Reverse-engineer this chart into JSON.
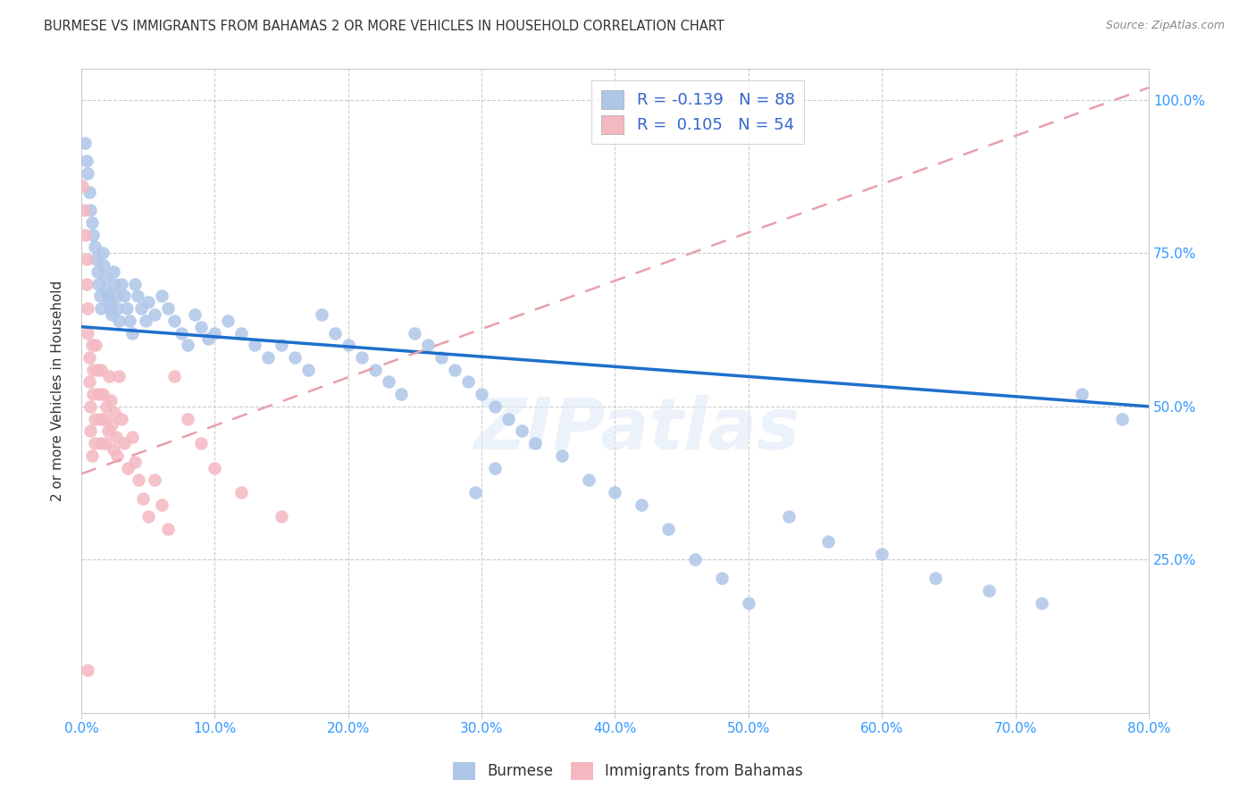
{
  "title": "BURMESE VS IMMIGRANTS FROM BAHAMAS 2 OR MORE VEHICLES IN HOUSEHOLD CORRELATION CHART",
  "source": "Source: ZipAtlas.com",
  "ylabel": "2 or more Vehicles in Household",
  "xmin": 0.0,
  "xmax": 0.8,
  "ymin": 0.0,
  "ymax": 1.05,
  "xtick_labels": [
    "0.0%",
    "10.0%",
    "20.0%",
    "30.0%",
    "40.0%",
    "50.0%",
    "60.0%",
    "70.0%",
    "80.0%"
  ],
  "xtick_values": [
    0.0,
    0.1,
    0.2,
    0.3,
    0.4,
    0.5,
    0.6,
    0.7,
    0.8
  ],
  "ytick_labels": [
    "25.0%",
    "50.0%",
    "75.0%",
    "100.0%"
  ],
  "ytick_values": [
    0.25,
    0.5,
    0.75,
    1.0
  ],
  "legend_label_blue": "R = -0.139   N = 88",
  "legend_label_pink": "R =  0.105   N = 54",
  "burmese_color": "#aec6e8",
  "bahamas_color": "#f4b8c1",
  "burmese_line_color": "#1e6fcc",
  "bahamas_line_color": "#e8a0aa",
  "watermark": "ZIPatlas",
  "burmese_line_x0": 0.0,
  "burmese_line_y0": 0.63,
  "burmese_line_x1": 0.8,
  "burmese_line_y1": 0.5,
  "bahamas_line_x0": 0.0,
  "bahamas_line_y0": 0.39,
  "bahamas_line_x1": 0.8,
  "bahamas_line_y1": 1.02,
  "burmese_x": [
    0.003,
    0.004,
    0.005,
    0.006,
    0.007,
    0.008,
    0.009,
    0.01,
    0.011,
    0.012,
    0.013,
    0.014,
    0.015,
    0.016,
    0.017,
    0.018,
    0.019,
    0.02,
    0.021,
    0.022,
    0.023,
    0.024,
    0.025,
    0.026,
    0.027,
    0.028,
    0.03,
    0.032,
    0.034,
    0.036,
    0.038,
    0.04,
    0.042,
    0.045,
    0.048,
    0.05,
    0.055,
    0.06,
    0.065,
    0.07,
    0.075,
    0.08,
    0.085,
    0.09,
    0.095,
    0.1,
    0.11,
    0.12,
    0.13,
    0.14,
    0.15,
    0.16,
    0.17,
    0.18,
    0.19,
    0.2,
    0.21,
    0.22,
    0.23,
    0.24,
    0.25,
    0.26,
    0.27,
    0.28,
    0.29,
    0.3,
    0.31,
    0.32,
    0.33,
    0.34,
    0.36,
    0.38,
    0.4,
    0.42,
    0.44,
    0.46,
    0.48,
    0.5,
    0.53,
    0.56,
    0.6,
    0.64,
    0.68,
    0.72,
    0.75,
    0.78,
    0.31,
    0.295
  ],
  "burmese_y": [
    0.93,
    0.9,
    0.88,
    0.85,
    0.82,
    0.8,
    0.78,
    0.76,
    0.74,
    0.72,
    0.7,
    0.68,
    0.66,
    0.75,
    0.73,
    0.71,
    0.69,
    0.68,
    0.67,
    0.66,
    0.65,
    0.72,
    0.7,
    0.68,
    0.66,
    0.64,
    0.7,
    0.68,
    0.66,
    0.64,
    0.62,
    0.7,
    0.68,
    0.66,
    0.64,
    0.67,
    0.65,
    0.68,
    0.66,
    0.64,
    0.62,
    0.6,
    0.65,
    0.63,
    0.61,
    0.62,
    0.64,
    0.62,
    0.6,
    0.58,
    0.6,
    0.58,
    0.56,
    0.65,
    0.62,
    0.6,
    0.58,
    0.56,
    0.54,
    0.52,
    0.62,
    0.6,
    0.58,
    0.56,
    0.54,
    0.52,
    0.5,
    0.48,
    0.46,
    0.44,
    0.42,
    0.38,
    0.36,
    0.34,
    0.3,
    0.25,
    0.22,
    0.18,
    0.32,
    0.28,
    0.26,
    0.22,
    0.2,
    0.18,
    0.52,
    0.48,
    0.4,
    0.36
  ],
  "bahamas_x": [
    0.001,
    0.002,
    0.003,
    0.004,
    0.004,
    0.005,
    0.005,
    0.006,
    0.006,
    0.007,
    0.007,
    0.008,
    0.008,
    0.009,
    0.009,
    0.01,
    0.01,
    0.011,
    0.012,
    0.013,
    0.014,
    0.015,
    0.015,
    0.016,
    0.017,
    0.018,
    0.019,
    0.02,
    0.021,
    0.022,
    0.023,
    0.024,
    0.025,
    0.026,
    0.027,
    0.028,
    0.03,
    0.032,
    0.035,
    0.038,
    0.04,
    0.043,
    0.046,
    0.05,
    0.055,
    0.06,
    0.065,
    0.07,
    0.08,
    0.09,
    0.1,
    0.12,
    0.15,
    0.005
  ],
  "bahamas_y": [
    0.86,
    0.82,
    0.78,
    0.74,
    0.7,
    0.66,
    0.62,
    0.58,
    0.54,
    0.5,
    0.46,
    0.42,
    0.6,
    0.56,
    0.52,
    0.48,
    0.44,
    0.6,
    0.56,
    0.52,
    0.48,
    0.44,
    0.56,
    0.52,
    0.48,
    0.44,
    0.5,
    0.46,
    0.55,
    0.51,
    0.47,
    0.43,
    0.49,
    0.45,
    0.42,
    0.55,
    0.48,
    0.44,
    0.4,
    0.45,
    0.41,
    0.38,
    0.35,
    0.32,
    0.38,
    0.34,
    0.3,
    0.55,
    0.48,
    0.44,
    0.4,
    0.36,
    0.32,
    0.07
  ]
}
